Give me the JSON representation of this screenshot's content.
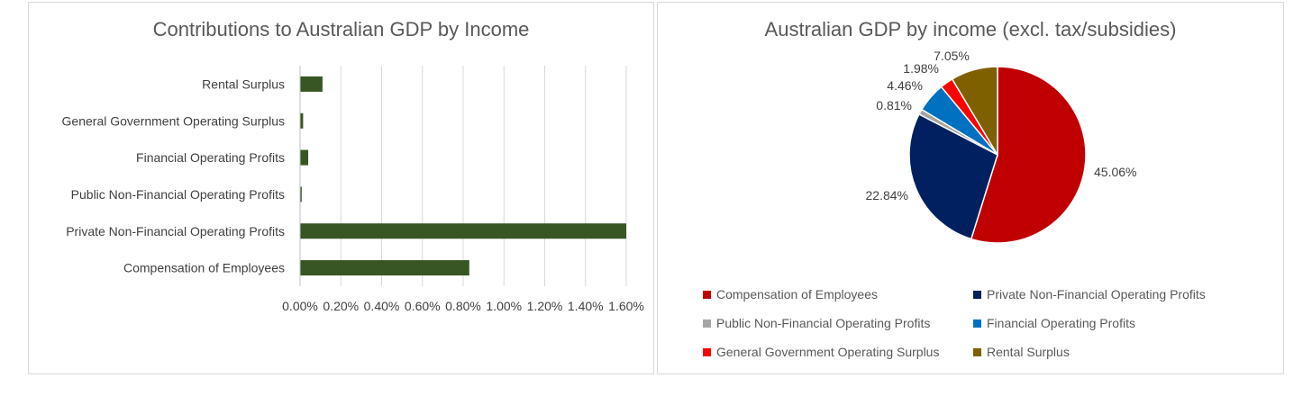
{
  "chart_data": [
    {
      "type": "bar",
      "orientation": "horizontal",
      "title": "Contributions to Australian GDP by Income",
      "categories": [
        "Rental Surplus",
        "General Government Operating Surplus",
        "Financial Operating Profits",
        "Public Non-Financial Operating Profits",
        "Private Non-Financial Operating Profits",
        "Compensation of Employees"
      ],
      "values": [
        0.11,
        0.015,
        0.04,
        0.008,
        1.6,
        0.83
      ],
      "xlim": [
        0,
        1.6
      ],
      "x_ticks": [
        "0.00%",
        "0.20%",
        "0.40%",
        "0.60%",
        "0.80%",
        "1.00%",
        "1.20%",
        "1.40%",
        "1.60%"
      ],
      "grid": true,
      "bar_color": "#375623"
    },
    {
      "type": "pie",
      "title": "Australian GDP by income (excl. tax/subsidies)",
      "slices": [
        {
          "name": "Compensation of Employees",
          "value": 45.06,
          "label": "45.06%",
          "color": "#c00000"
        },
        {
          "name": "Private Non-Financial Operating Profits",
          "value": 22.84,
          "label": "22.84%",
          "color": "#002060"
        },
        {
          "name": "Public Non-Financial Operating Profits",
          "value": 0.81,
          "label": "0.81%",
          "color": "#a5a5a5"
        },
        {
          "name": "Financial Operating Profits",
          "value": 4.46,
          "label": "4.46%",
          "color": "#0070c0"
        },
        {
          "name": "General Government Operating Surplus",
          "value": 1.98,
          "label": "1.98%",
          "color": "#ff0000"
        },
        {
          "name": "Rental Surplus",
          "value": 7.05,
          "label": "7.05%",
          "color": "#7f6000"
        }
      ],
      "legend_position": "bottom"
    }
  ]
}
